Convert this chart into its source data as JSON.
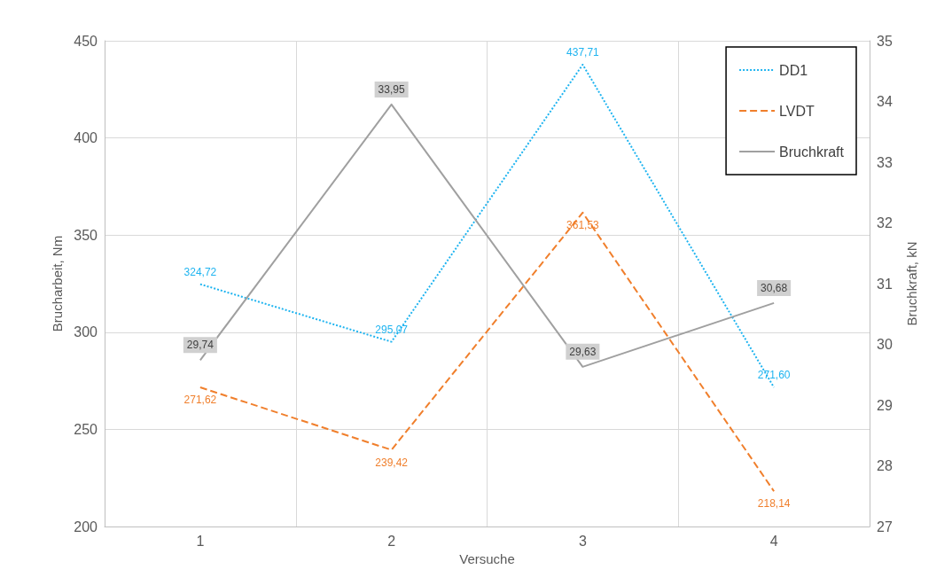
{
  "chart_data": {
    "type": "line",
    "xlabel": "Versuche",
    "ylabel": "Brucharbeit, Nm",
    "y2label": "Bruchkraft, kN",
    "categories": [
      "1",
      "2",
      "3",
      "4"
    ],
    "series": [
      {
        "name": "DD1",
        "color": "#1fb4f0",
        "line_style": "dotted",
        "values": [
          324.72,
          295.07,
          437.71,
          271.6
        ],
        "value_labels": [
          "324,72",
          "295,07",
          "437,71",
          "271,60"
        ]
      },
      {
        "name": "LVDT",
        "color": "#f07f2c",
        "line_style": "dashed",
        "values": [
          271.62,
          239.42,
          361.53,
          218.14
        ],
        "value_labels": [
          "271,62",
          "239,42",
          "361,53",
          "218,14"
        ]
      },
      {
        "name": "Bruchkraft",
        "color": "#a0a0a0",
        "line_style": "solid",
        "axis": "y2",
        "values": [
          29.74,
          33.95,
          29.63,
          30.68
        ],
        "value_labels": [
          "29,74",
          "33,95",
          "29,63",
          "30,68"
        ]
      }
    ],
    "ylim": [
      200,
      450
    ],
    "yticks": [
      200,
      250,
      300,
      350,
      400,
      450
    ],
    "y2lim": [
      27,
      35
    ],
    "y2ticks": [
      27,
      28,
      29,
      30,
      31,
      32,
      33,
      34,
      35
    ],
    "grid": true,
    "legend": "top right",
    "marker": "none"
  }
}
